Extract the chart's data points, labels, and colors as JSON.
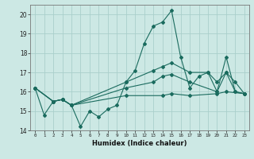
{
  "xlabel": "Humidex (Indice chaleur)",
  "ylabel": "",
  "xlim": [
    -0.5,
    23.5
  ],
  "ylim": [
    14,
    20.5
  ],
  "yticks": [
    14,
    15,
    16,
    17,
    18,
    19,
    20
  ],
  "xtick_labels": [
    "0",
    "1",
    "2",
    "3",
    "4",
    "5",
    "6",
    "7",
    "8",
    "9",
    "10",
    "11",
    "12",
    "13",
    "14",
    "15",
    "16",
    "17",
    "18",
    "19",
    "20",
    "21",
    "22",
    "23"
  ],
  "background_color": "#cce8e4",
  "grid_color": "#aacfcb",
  "line_color": "#1a6b5e",
  "series": [
    {
      "x": [
        0,
        1,
        2,
        3,
        4,
        5,
        6,
        7,
        8,
        9,
        10,
        11,
        12,
        13,
        14,
        15,
        16,
        17,
        18,
        19,
        20,
        21,
        22,
        23
      ],
      "y": [
        16.2,
        14.8,
        15.5,
        15.6,
        15.3,
        14.2,
        15.0,
        14.7,
        15.1,
        15.3,
        16.5,
        17.1,
        18.5,
        19.4,
        19.6,
        20.2,
        17.8,
        16.2,
        16.8,
        17.0,
        16.0,
        17.0,
        16.0,
        15.9
      ]
    },
    {
      "x": [
        0,
        2,
        3,
        4,
        10,
        13,
        14,
        15,
        17,
        19,
        20,
        21,
        22,
        23
      ],
      "y": [
        16.2,
        15.5,
        15.6,
        15.3,
        16.5,
        17.1,
        17.3,
        17.5,
        17.0,
        17.0,
        16.5,
        17.0,
        16.5,
        15.9
      ]
    },
    {
      "x": [
        0,
        2,
        3,
        4,
        10,
        13,
        14,
        15,
        17,
        20,
        21,
        22,
        23
      ],
      "y": [
        16.2,
        15.5,
        15.6,
        15.3,
        16.2,
        16.5,
        16.8,
        16.9,
        16.5,
        16.0,
        17.8,
        16.0,
        15.9
      ]
    },
    {
      "x": [
        0,
        2,
        3,
        4,
        10,
        14,
        15,
        17,
        20,
        21,
        23
      ],
      "y": [
        16.2,
        15.5,
        15.6,
        15.3,
        15.8,
        15.8,
        15.9,
        15.8,
        15.9,
        16.0,
        15.9
      ]
    }
  ]
}
